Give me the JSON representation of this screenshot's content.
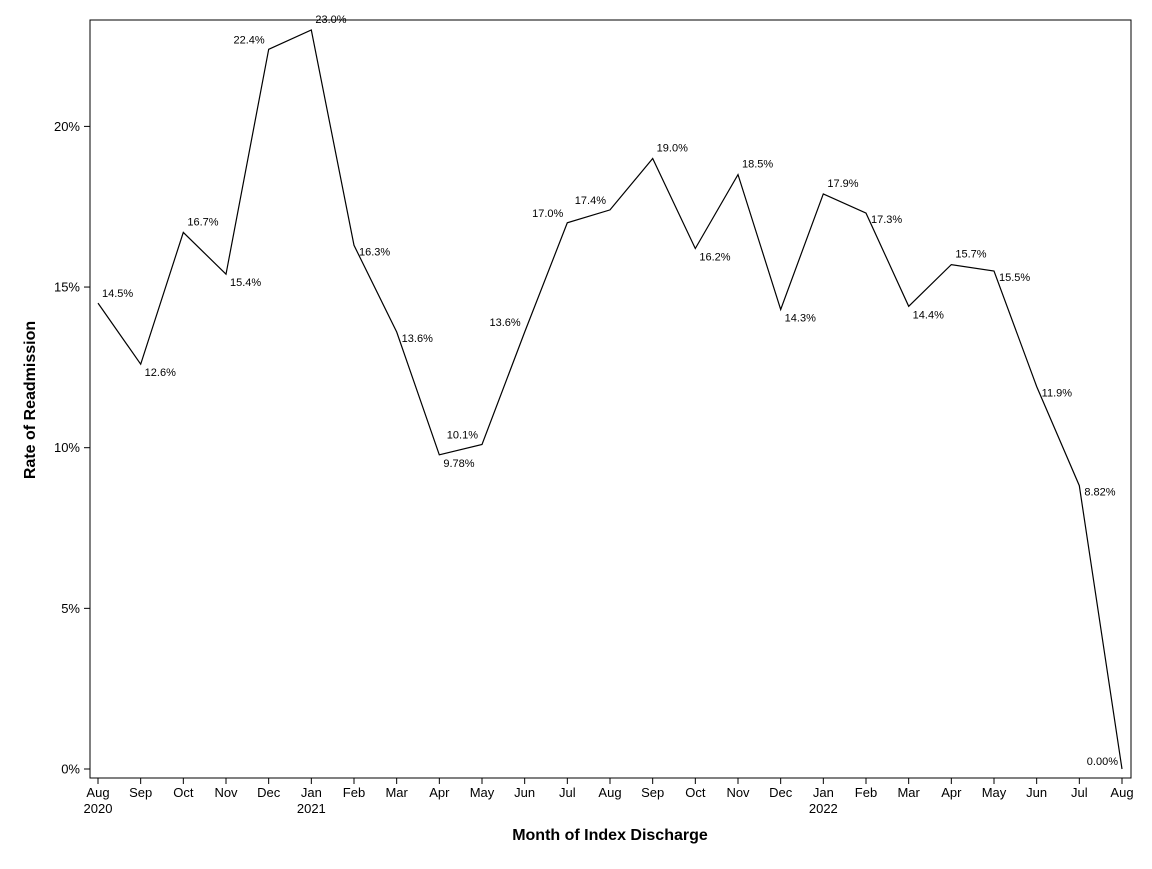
{
  "chart_data": {
    "type": "line",
    "title": "",
    "xlabel": "Month of Index Discharge",
    "ylabel": "Rate of Readmission",
    "ylim": [
      0,
      23.0
    ],
    "yticks": [
      {
        "value": 0,
        "label": "0%"
      },
      {
        "value": 5,
        "label": "5%"
      },
      {
        "value": 10,
        "label": "10%"
      },
      {
        "value": 15,
        "label": "15%"
      },
      {
        "value": 20,
        "label": "20%"
      }
    ],
    "categories": [
      {
        "month": "Aug",
        "year": "2020"
      },
      {
        "month": "Sep",
        "year": ""
      },
      {
        "month": "Oct",
        "year": ""
      },
      {
        "month": "Nov",
        "year": ""
      },
      {
        "month": "Dec",
        "year": ""
      },
      {
        "month": "Jan",
        "year": "2021"
      },
      {
        "month": "Feb",
        "year": ""
      },
      {
        "month": "Mar",
        "year": ""
      },
      {
        "month": "Apr",
        "year": ""
      },
      {
        "month": "May",
        "year": ""
      },
      {
        "month": "Jun",
        "year": ""
      },
      {
        "month": "Jul",
        "year": ""
      },
      {
        "month": "Aug",
        "year": ""
      },
      {
        "month": "Sep",
        "year": ""
      },
      {
        "month": "Oct",
        "year": ""
      },
      {
        "month": "Nov",
        "year": ""
      },
      {
        "month": "Dec",
        "year": ""
      },
      {
        "month": "Jan",
        "year": "2022"
      },
      {
        "month": "Feb",
        "year": ""
      },
      {
        "month": "Mar",
        "year": ""
      },
      {
        "month": "Apr",
        "year": ""
      },
      {
        "month": "May",
        "year": ""
      },
      {
        "month": "Jun",
        "year": ""
      },
      {
        "month": "Jul",
        "year": ""
      },
      {
        "month": "Aug",
        "year": ""
      }
    ],
    "series": [
      {
        "name": "Rate of Readmission",
        "color": "#000000",
        "values": [
          14.5,
          12.6,
          16.7,
          15.4,
          22.4,
          23.0,
          16.3,
          13.6,
          9.78,
          10.1,
          13.6,
          17.0,
          17.4,
          19.0,
          16.2,
          18.5,
          14.3,
          17.9,
          17.3,
          14.4,
          15.7,
          15.5,
          11.9,
          8.82,
          0.0
        ],
        "labels": [
          "14.5%",
          "12.6%",
          "16.7%",
          "15.4%",
          "22.4%",
          "23.0%",
          "16.3%",
          "13.6%",
          "9.78%",
          "10.1%",
          "13.6%",
          "17.0%",
          "17.4%",
          "19.0%",
          "16.2%",
          "18.5%",
          "14.3%",
          "17.9%",
          "17.3%",
          "14.4%",
          "15.7%",
          "15.5%",
          "11.9%",
          "8.82%",
          "0.00%"
        ]
      }
    ],
    "grid": false,
    "legend": "none"
  }
}
